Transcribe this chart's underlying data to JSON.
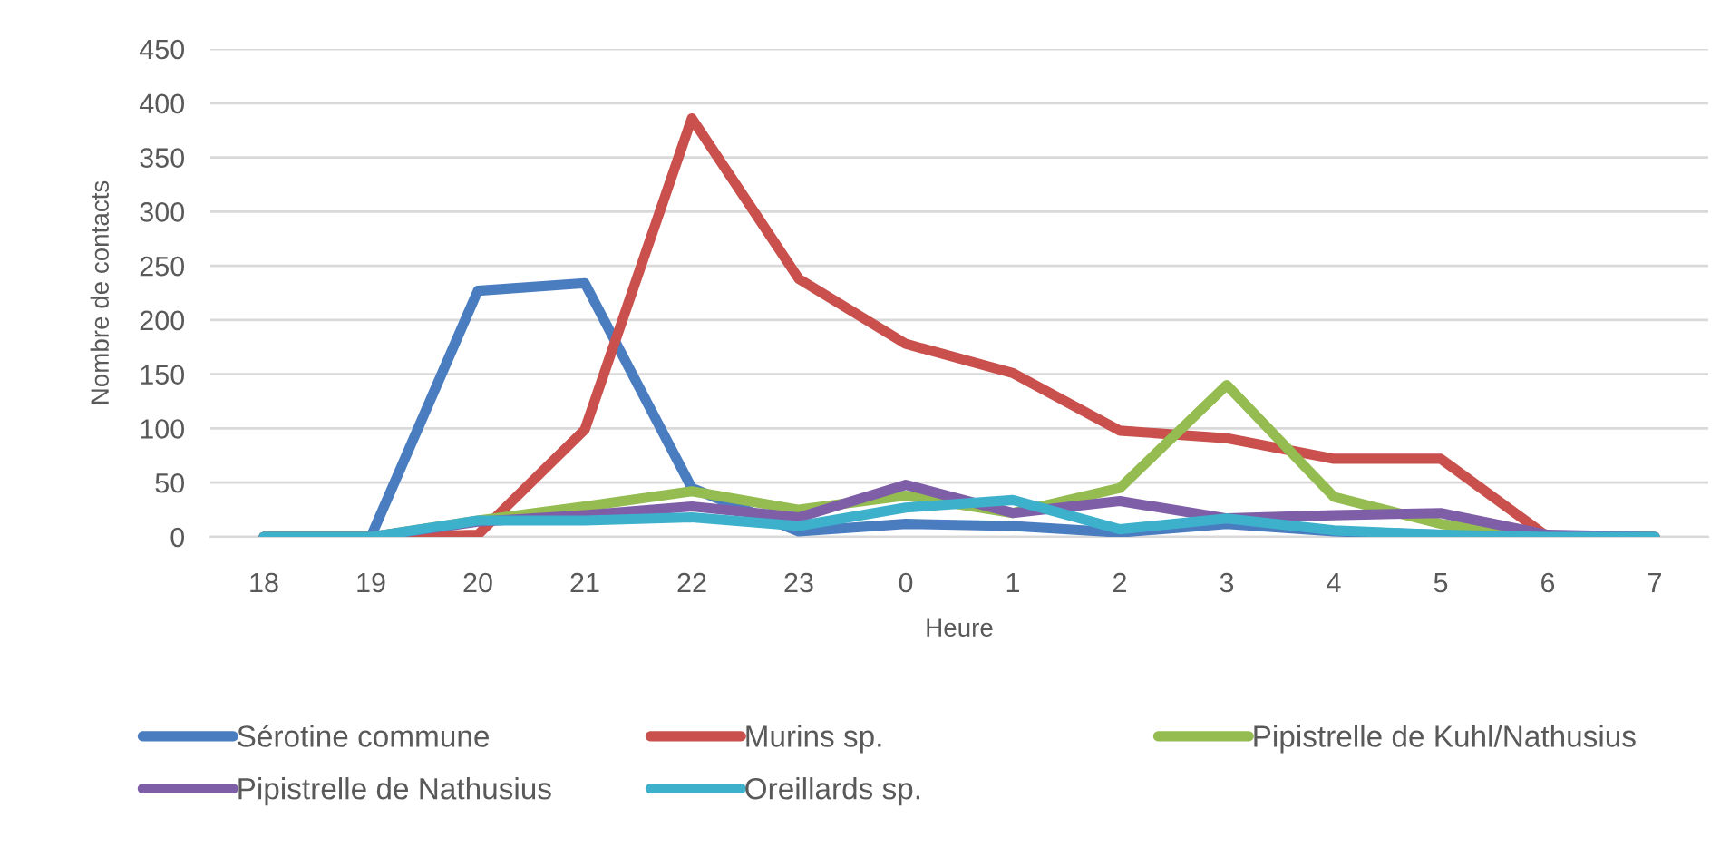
{
  "chart_data": {
    "type": "line",
    "xlabel": "Heure",
    "ylabel": "Nombre de contacts",
    "categories": [
      "18",
      "19",
      "20",
      "21",
      "22",
      "23",
      "0",
      "1",
      "2",
      "3",
      "4",
      "5",
      "6",
      "7"
    ],
    "series": [
      {
        "name": "Sérotine commune",
        "color": "#4a7cc0",
        "values": [
          0,
          0,
          227,
          234,
          45,
          5,
          12,
          10,
          4,
          12,
          5,
          2,
          0,
          0
        ]
      },
      {
        "name": "Murins sp.",
        "color": "#c9504c",
        "values": [
          0,
          0,
          2,
          99,
          386,
          238,
          178,
          151,
          98,
          91,
          72,
          72,
          0,
          0
        ]
      },
      {
        "name": "Pipistrelle de Kuhl/Nathusius",
        "color": "#94bc50",
        "values": [
          0,
          0,
          15,
          28,
          42,
          25,
          38,
          22,
          45,
          140,
          37,
          12,
          0,
          0
        ]
      },
      {
        "name": "Pipistrelle de Nathusius",
        "color": "#7f5ea8",
        "values": [
          0,
          0,
          14,
          20,
          28,
          18,
          48,
          22,
          33,
          17,
          20,
          22,
          2,
          0
        ]
      },
      {
        "name": "Oreillards sp.",
        "color": "#3db0cc",
        "values": [
          0,
          0,
          15,
          15,
          18,
          10,
          27,
          34,
          7,
          17,
          6,
          2,
          0,
          0
        ]
      }
    ],
    "ylim": [
      0,
      450
    ],
    "yticks": [
      0,
      50,
      100,
      150,
      200,
      250,
      300,
      350,
      400,
      450
    ],
    "grid": "y",
    "legend": "bottom",
    "marker": "none",
    "line_style": "solid"
  }
}
